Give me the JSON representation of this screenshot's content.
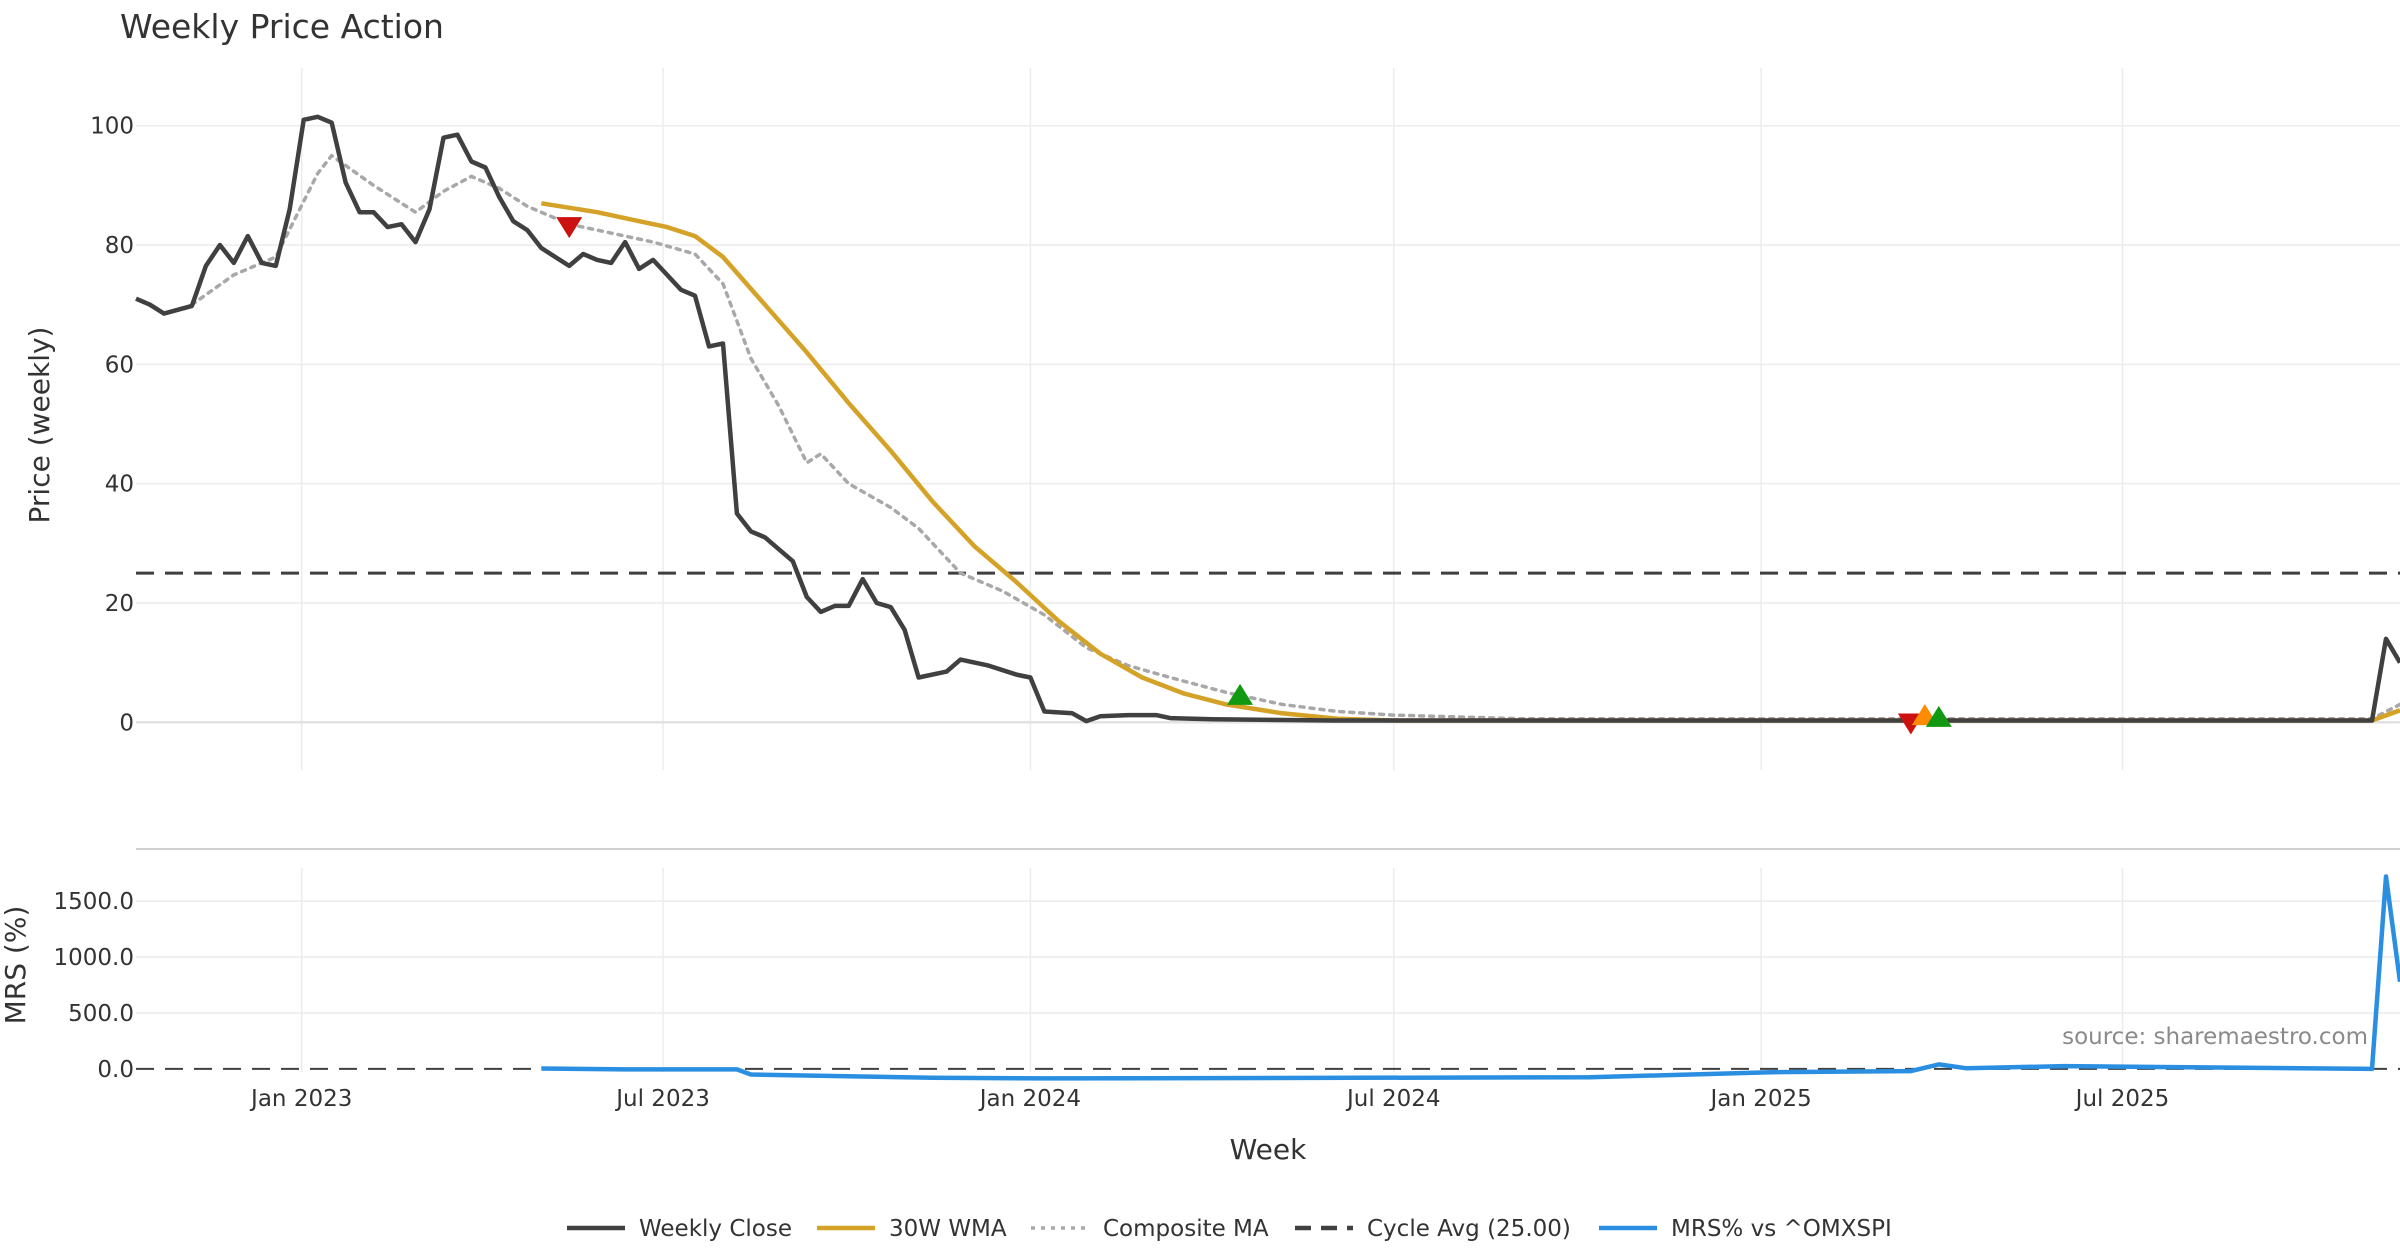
{
  "colors": {
    "close": "#404040",
    "wma": "#d4a226",
    "composite": "#a8a8a8",
    "cycle": "#404040",
    "mrs": "#2a8fe0",
    "sell": "#cc1111",
    "buy": "#119911",
    "warn": "#ff8c00",
    "grid": "#ececec"
  },
  "chart_data": {
    "type": "line",
    "title": "Weekly Price Action",
    "xlabel": "Week",
    "date_range": [
      "2022-10-10",
      "2025-11-17"
    ],
    "x_ticks": [
      {
        "date": "2023-01-01",
        "label": "Jan 2023"
      },
      {
        "date": "2023-07-01",
        "label": "Jul 2023"
      },
      {
        "date": "2024-01-01",
        "label": "Jan 2024"
      },
      {
        "date": "2024-07-01",
        "label": "Jul 2024"
      },
      {
        "date": "2025-01-01",
        "label": "Jan 2025"
      },
      {
        "date": "2025-07-01",
        "label": "Jul 2025"
      }
    ],
    "price_panel": {
      "ylabel": "Price (weekly)",
      "ylim": [
        -8,
        108
      ],
      "y_ticks": [
        {
          "value": 0,
          "label": "0"
        },
        {
          "value": 20,
          "label": "20"
        },
        {
          "value": 40,
          "label": "40"
        },
        {
          "value": 60,
          "label": "60"
        },
        {
          "value": 80,
          "label": "80"
        },
        {
          "value": 100,
          "label": "100"
        }
      ],
      "series": [
        {
          "name": "Weekly Close",
          "key": "close",
          "style": "solid",
          "points": [
            [
              "2022-10-10",
              71
            ],
            [
              "2022-10-17",
              70
            ],
            [
              "2022-10-24",
              68.5
            ],
            [
              "2022-11-07",
              69.8
            ],
            [
              "2022-11-14",
              76.5
            ],
            [
              "2022-11-21",
              80
            ],
            [
              "2022-11-28",
              77
            ],
            [
              "2022-12-05",
              81.5
            ],
            [
              "2022-12-12",
              77
            ],
            [
              "2022-12-19",
              76.5
            ],
            [
              "2022-12-26",
              86
            ],
            [
              "2023-01-02",
              101
            ],
            [
              "2023-01-09",
              101.5
            ],
            [
              "2023-01-16",
              100.5
            ],
            [
              "2023-01-23",
              90.5
            ],
            [
              "2023-01-30",
              85.5
            ],
            [
              "2023-02-06",
              85.5
            ],
            [
              "2023-02-13",
              83
            ],
            [
              "2023-02-20",
              83.5
            ],
            [
              "2023-02-27",
              80.5
            ],
            [
              "2023-03-06",
              86
            ],
            [
              "2023-03-13",
              98
            ],
            [
              "2023-03-20",
              98.5
            ],
            [
              "2023-03-27",
              94
            ],
            [
              "2023-04-03",
              93
            ],
            [
              "2023-04-10",
              88
            ],
            [
              "2023-04-17",
              84
            ],
            [
              "2023-04-24",
              82.5
            ],
            [
              "2023-05-01",
              79.5
            ],
            [
              "2023-05-08",
              78
            ],
            [
              "2023-05-15",
              76.5
            ],
            [
              "2023-05-22",
              78.5
            ],
            [
              "2023-05-29",
              77.5
            ],
            [
              "2023-06-05",
              77
            ],
            [
              "2023-06-12",
              80.5
            ],
            [
              "2023-06-19",
              76
            ],
            [
              "2023-06-26",
              77.5
            ],
            [
              "2023-07-03",
              75
            ],
            [
              "2023-07-10",
              72.5
            ],
            [
              "2023-07-17",
              71.5
            ],
            [
              "2023-07-24",
              63
            ],
            [
              "2023-07-31",
              63.5
            ],
            [
              "2023-08-07",
              35
            ],
            [
              "2023-08-14",
              32
            ],
            [
              "2023-08-21",
              31
            ],
            [
              "2023-08-28",
              29
            ],
            [
              "2023-09-04",
              27
            ],
            [
              "2023-09-11",
              21
            ],
            [
              "2023-09-18",
              18.5
            ],
            [
              "2023-09-25",
              19.5
            ],
            [
              "2023-10-02",
              19.5
            ],
            [
              "2023-10-09",
              24
            ],
            [
              "2023-10-16",
              20
            ],
            [
              "2023-10-23",
              19.3
            ],
            [
              "2023-10-30",
              15.5
            ],
            [
              "2023-11-06",
              7.5
            ],
            [
              "2023-11-20",
              8.5
            ],
            [
              "2023-11-27",
              10.5
            ],
            [
              "2023-12-11",
              9.5
            ],
            [
              "2023-12-25",
              8
            ],
            [
              "2024-01-01",
              7.5
            ],
            [
              "2024-01-08",
              1.8
            ],
            [
              "2024-01-22",
              1.5
            ],
            [
              "2024-01-29",
              0.2
            ],
            [
              "2024-02-05",
              1
            ],
            [
              "2024-02-19",
              1.2
            ],
            [
              "2024-03-04",
              1.2
            ],
            [
              "2024-03-11",
              0.7
            ],
            [
              "2024-04-01",
              0.5
            ],
            [
              "2024-06-01",
              0.3
            ],
            [
              "2025-11-03",
              0.3
            ],
            [
              "2025-11-10",
              14
            ],
            [
              "2025-11-17",
              10
            ]
          ]
        },
        {
          "name": "30W WMA",
          "key": "wma",
          "style": "solid",
          "points": [
            [
              "2023-05-01",
              87
            ],
            [
              "2023-05-29",
              85.5
            ],
            [
              "2023-06-12",
              84.5
            ],
            [
              "2023-07-03",
              83
            ],
            [
              "2023-07-17",
              81.5
            ],
            [
              "2023-07-31",
              78
            ],
            [
              "2023-08-21",
              70
            ],
            [
              "2023-09-11",
              62
            ],
            [
              "2023-10-02",
              53.5
            ],
            [
              "2023-10-23",
              45.5
            ],
            [
              "2023-11-13",
              37
            ],
            [
              "2023-12-04",
              29.5
            ],
            [
              "2023-12-25",
              23.5
            ],
            [
              "2024-01-15",
              17
            ],
            [
              "2024-02-05",
              11.5
            ],
            [
              "2024-02-26",
              7.5
            ],
            [
              "2024-03-18",
              4.8
            ],
            [
              "2024-04-08",
              3
            ],
            [
              "2024-05-06",
              1.5
            ],
            [
              "2024-06-03",
              0.6
            ],
            [
              "2024-07-01",
              0.3
            ],
            [
              "2024-09-02",
              0.3
            ],
            [
              "2025-11-03",
              0.3
            ],
            [
              "2025-11-17",
              2
            ]
          ]
        },
        {
          "name": "Composite MA",
          "key": "composite",
          "style": "dotted",
          "points": [
            [
              "2022-11-07",
              70
            ],
            [
              "2022-11-28",
              75
            ],
            [
              "2022-12-19",
              78
            ],
            [
              "2023-01-09",
              92
            ],
            [
              "2023-01-16",
              95
            ],
            [
              "2023-02-06",
              90
            ],
            [
              "2023-02-27",
              85.5
            ],
            [
              "2023-03-13",
              89
            ],
            [
              "2023-03-27",
              91.5
            ],
            [
              "2023-04-10",
              89.5
            ],
            [
              "2023-04-24",
              86.5
            ],
            [
              "2023-05-15",
              83.5
            ],
            [
              "2023-06-05",
              82
            ],
            [
              "2023-06-26",
              80.5
            ],
            [
              "2023-07-17",
              78.5
            ],
            [
              "2023-07-31",
              73.5
            ],
            [
              "2023-08-14",
              61
            ],
            [
              "2023-08-28",
              53
            ],
            [
              "2023-09-11",
              43.5
            ],
            [
              "2023-09-18",
              45
            ],
            [
              "2023-10-02",
              40
            ],
            [
              "2023-10-23",
              36
            ],
            [
              "2023-11-06",
              32.5
            ],
            [
              "2023-11-27",
              25
            ],
            [
              "2023-12-18",
              22
            ],
            [
              "2024-01-08",
              18
            ],
            [
              "2024-01-29",
              12.5
            ],
            [
              "2024-02-19",
              9.5
            ],
            [
              "2024-03-11",
              7.5
            ],
            [
              "2024-04-08",
              5
            ],
            [
              "2024-05-06",
              3
            ],
            [
              "2024-06-03",
              1.8
            ],
            [
              "2024-07-01",
              1.2
            ],
            [
              "2024-09-02",
              0.6
            ],
            [
              "2025-11-03",
              0.6
            ],
            [
              "2025-11-17",
              3
            ]
          ]
        },
        {
          "name": "Cycle Avg (25.00)",
          "key": "cycle",
          "style": "dashed",
          "points": [
            [
              "2022-10-10",
              25
            ],
            [
              "2025-11-17",
              25
            ]
          ]
        }
      ],
      "signals": [
        {
          "date": "2023-05-15",
          "value": 83,
          "type": "sell"
        },
        {
          "date": "2024-04-15",
          "value": 4.6,
          "type": "buy"
        },
        {
          "date": "2025-03-17",
          "value": -0.2,
          "type": "sell"
        },
        {
          "date": "2025-03-24",
          "value": 1.2,
          "type": "warn"
        },
        {
          "date": "2025-03-31",
          "value": 0.9,
          "type": "buy"
        }
      ]
    },
    "mrs_panel": {
      "ylabel": "MRS (%)",
      "ylim": [
        -10,
        1850
      ],
      "y_ticks": [
        {
          "value": 0,
          "label": "0.0"
        },
        {
          "value": 500,
          "label": "500.0"
        },
        {
          "value": 1000,
          "label": "1000.0"
        },
        {
          "value": 1500,
          "label": "1500.0"
        }
      ],
      "series": [
        {
          "name": "MRS% vs ^OMXSPI",
          "key": "mrs",
          "style": "solid",
          "points": [
            [
              "2023-05-01",
              3
            ],
            [
              "2023-06-12",
              -5
            ],
            [
              "2023-08-07",
              -5
            ],
            [
              "2023-08-14",
              -50
            ],
            [
              "2023-11-13",
              -80
            ],
            [
              "2024-01-08",
              -85
            ],
            [
              "2024-10-07",
              -75
            ],
            [
              "2025-01-06",
              -30
            ],
            [
              "2025-03-17",
              -20
            ],
            [
              "2025-03-31",
              40
            ],
            [
              "2025-04-14",
              5
            ],
            [
              "2025-06-02",
              25
            ],
            [
              "2025-09-01",
              10
            ],
            [
              "2025-11-03",
              0
            ],
            [
              "2025-11-10",
              1720
            ],
            [
              "2025-11-17",
              780
            ]
          ]
        }
      ],
      "zero_line": true
    },
    "legend": {
      "position": "bottom-center",
      "items": [
        {
          "label": "Weekly Close",
          "key": "close",
          "style": "solid"
        },
        {
          "label": "30W WMA",
          "key": "wma",
          "style": "solid"
        },
        {
          "label": "Composite MA",
          "key": "composite",
          "style": "dotted"
        },
        {
          "label": "Cycle Avg (25.00)",
          "key": "cycle",
          "style": "dashed"
        },
        {
          "label": "MRS% vs ^OMXSPI",
          "key": "mrs",
          "style": "solid"
        }
      ]
    },
    "annotation": "source: sharemaestro.com"
  }
}
